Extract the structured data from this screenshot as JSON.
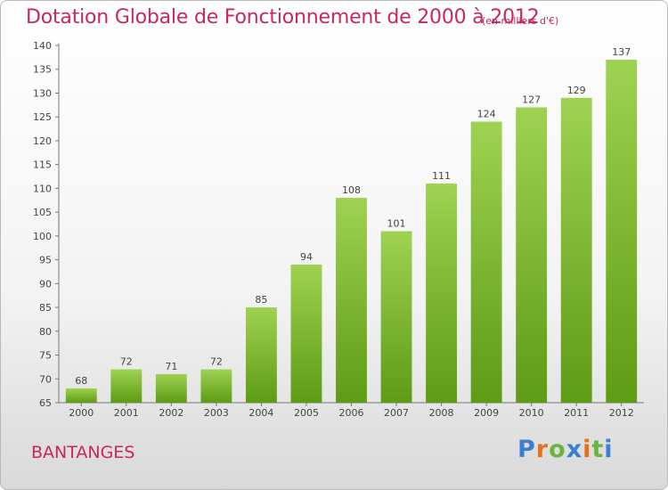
{
  "header": {
    "title": "Dotation Globale de Fonctionnement de 2000 à 2012",
    "unit_note": "(en milliers d'€)"
  },
  "footer": {
    "commune": "BANTANGES",
    "logo": {
      "letters": [
        "P",
        "r",
        "o",
        "x",
        "i",
        "t",
        "i"
      ],
      "colors": [
        "#3a7fd0",
        "#e8701a",
        "#6cb33f",
        "#3a7fd0",
        "#e8701a",
        "#6cb33f",
        "#3a7fd0"
      ]
    }
  },
  "chart_data": {
    "type": "bar",
    "categories": [
      "2000",
      "2001",
      "2002",
      "2003",
      "2004",
      "2005",
      "2006",
      "2007",
      "2008",
      "2009",
      "2010",
      "2011",
      "2012"
    ],
    "values": [
      68,
      72,
      71,
      72,
      85,
      94,
      108,
      101,
      111,
      124,
      127,
      129,
      137
    ],
    "title": "Dotation Globale de Fonctionnement de 2000 à 2012",
    "subtitle": "(en milliers d'€)",
    "ylim": [
      65,
      140
    ],
    "ytick_step": 5,
    "grid": false,
    "bar_color_top": "#9fd252",
    "bar_color_bottom": "#5e9b14",
    "data_labels": true
  }
}
